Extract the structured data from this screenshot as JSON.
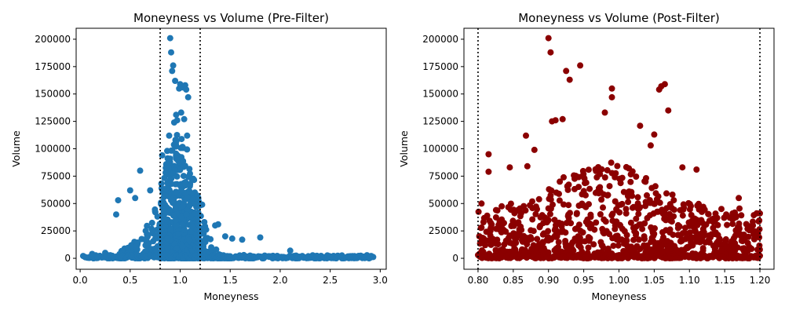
{
  "chart_data": [
    {
      "type": "scatter",
      "title": "Moneyness vs Volume (Pre-Filter)",
      "xlabel": "Moneyness",
      "ylabel": "Volume",
      "xlim": [
        -0.04,
        3.06
      ],
      "ylim": [
        -10000,
        210000
      ],
      "xticks": [
        "0.0",
        "0.5",
        "1.0",
        "1.5",
        "2.0",
        "2.5",
        "3.0"
      ],
      "yticks": [
        "0",
        "25000",
        "50000",
        "75000",
        "100000",
        "125000",
        "150000",
        "175000",
        "200000"
      ],
      "color": "#1f77b4",
      "grid": false,
      "vlines": [
        0.8,
        1.2
      ],
      "series": [
        {
          "x": [
            0.9,
            0.91,
            0.93,
            0.92,
            0.95,
            1.0,
            1.03,
            1.05,
            0.99,
            1.06,
            1.08,
            1.01,
            0.96,
            0.97,
            1.04,
            0.94,
            1.07,
            0.89,
            0.82,
            0.87,
            0.6,
            0.5,
            0.38,
            0.36,
            0.55,
            0.7,
            1.22,
            1.18,
            1.35,
            1.38,
            1.45,
            1.52,
            1.62,
            1.8,
            2.1,
            0.12,
            0.05,
            0.25,
            2.9,
            2.7,
            2.5
          ],
          "y": [
            201000,
            188000,
            176000,
            171000,
            162000,
            159000,
            156000,
            158000,
            155000,
            154000,
            147000,
            133000,
            131000,
            126000,
            127000,
            124000,
            112000,
            112000,
            94000,
            98000,
            80000,
            62000,
            53000,
            40000,
            55000,
            62000,
            49000,
            54000,
            30000,
            31000,
            20000,
            18000,
            17000,
            19000,
            7000,
            4000,
            1000,
            5000,
            500,
            500,
            500
          ]
        }
      ]
    },
    {
      "type": "scatter",
      "title": "Moneyness vs Volume (Post-Filter)",
      "xlabel": "Moneyness",
      "ylabel": "Volume",
      "xlim": [
        0.78,
        1.22
      ],
      "ylim": [
        -10000,
        210000
      ],
      "xticks": [
        "0.80",
        "0.85",
        "0.90",
        "0.95",
        "1.00",
        "1.05",
        "1.10",
        "1.15",
        "1.20"
      ],
      "yticks": [
        "0",
        "25000",
        "50000",
        "75000",
        "100000",
        "125000",
        "150000",
        "175000",
        "200000"
      ],
      "color": "#8b0000",
      "grid": false,
      "vlines": [
        0.8,
        1.2
      ],
      "series": [
        {
          "x": [
            0.9,
            0.903,
            0.925,
            0.93,
            0.945,
            0.99,
            0.99,
            1.06,
            1.065,
            1.057,
            0.98,
            0.905,
            0.91,
            1.07,
            0.92,
            0.868,
            0.815,
            0.815,
            0.845,
            0.87,
            0.88,
            1.03,
            1.045,
            1.05,
            1.09,
            1.11,
            1.17,
            1.2,
            0.805,
            1.19
          ],
          "y": [
            201000,
            188000,
            171000,
            163000,
            176000,
            155000,
            147000,
            157000,
            159000,
            154000,
            133000,
            125000,
            126000,
            135000,
            127000,
            112000,
            95000,
            79000,
            83000,
            84000,
            99000,
            121000,
            103000,
            113000,
            83000,
            81000,
            55000,
            41000,
            50000,
            30000
          ]
        }
      ]
    }
  ]
}
